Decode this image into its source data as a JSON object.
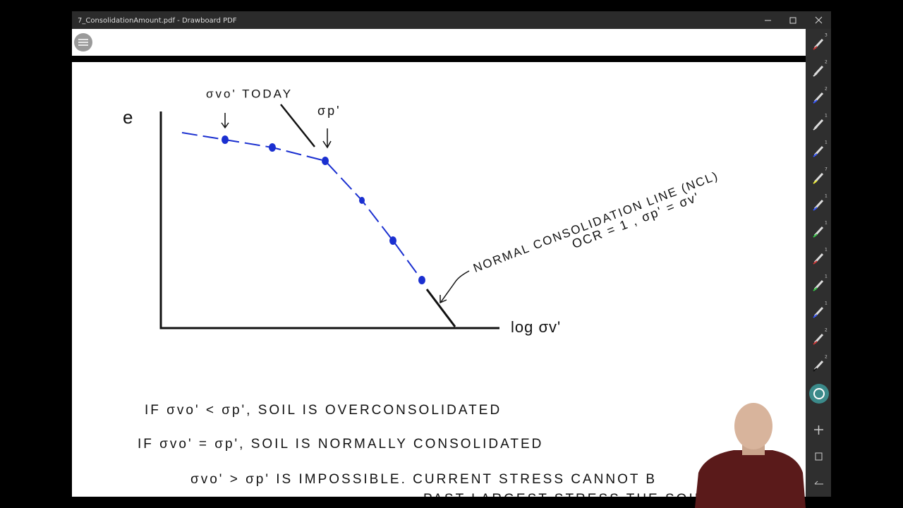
{
  "window": {
    "title": "7_ConsolidationAmount.pdf - Drawboard PDF"
  },
  "toolbar": {
    "tool_badges": [
      "3",
      "2",
      "2",
      "1",
      "1",
      "7",
      "1",
      "1",
      "1",
      "1",
      "1",
      "2",
      "2"
    ]
  },
  "sketch": {
    "y_axis_label": "e",
    "today_label": "σvo' TODAY",
    "preconsolidation_label": "σp'",
    "x_axis_label": "log σv'",
    "ncl_label": "NORMAL CONSOLIDATION LINE (NCL)",
    "ncl_condition": "OCR = 1 , σp' = σv'"
  },
  "notes": [
    "IF   σvo' < σp',   SOIL  IS  OVERCONSOLIDATED",
    "IF   σvo' = σp',   SOIL  IS  NORMALLY  CONSOLIDATED",
    "σvo' > σp'   IS  IMPOSSIBLE.   CURRENT  STRESS  CANNOT  B",
    "PAST  LARGEST  STRESS  THE  SOIL  H"
  ]
}
